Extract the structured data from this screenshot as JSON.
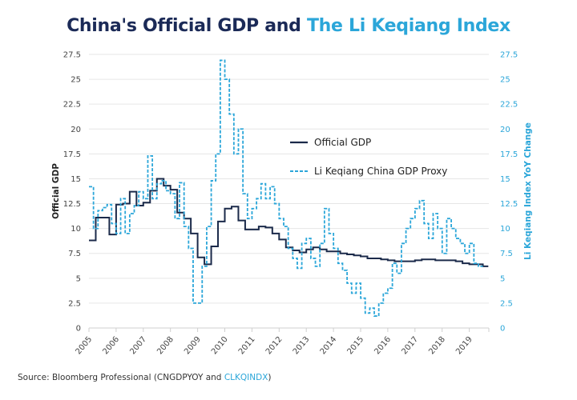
{
  "chart_data": {
    "type": "line",
    "title_part1": "China's Official GDP and",
    "title_part2": "The Li Keqiang Index",
    "ylabel": "Official GDP",
    "y2label": "Li Keqiang Index YoY Change",
    "ylim": [
      0,
      27.5
    ],
    "y2lim": [
      0,
      27.5
    ],
    "yticks": [
      "0",
      "2.5",
      "5",
      "7.5",
      "10",
      "12.5",
      "15",
      "17.5",
      "20",
      "22.5",
      "25",
      "27.5"
    ],
    "xlim": [
      2005,
      2019.7
    ],
    "xticks": [
      "2005",
      "2006",
      "2007",
      "2008",
      "2009",
      "2010",
      "2011",
      "2012",
      "2013",
      "2014",
      "2015",
      "2016",
      "2017",
      "2018",
      "2019"
    ],
    "grid": true,
    "legend_placement": "center-right",
    "series": [
      {
        "name": "Official GDP",
        "color": "#1b2a4a",
        "style": "solid-step",
        "x_start": 2005,
        "x_step_years": 0.25,
        "values": [
          8.8,
          11.1,
          11.1,
          9.4,
          12.4,
          12.5,
          13.7,
          12.3,
          12.6,
          13.8,
          15.0,
          14.3,
          13.9,
          11.6,
          11.0,
          9.5,
          7.1,
          6.4,
          8.2,
          10.7,
          12.0,
          12.2,
          10.8,
          9.9,
          9.9,
          10.2,
          10.1,
          9.5,
          8.9,
          8.1,
          7.8,
          7.6,
          7.9,
          8.1,
          7.9,
          7.7,
          7.7,
          7.5,
          7.4,
          7.3,
          7.2,
          7.0,
          7.0,
          6.9,
          6.8,
          6.7,
          6.7,
          6.7,
          6.8,
          6.9,
          6.9,
          6.8,
          6.8,
          6.8,
          6.7,
          6.5,
          6.4,
          6.4,
          6.2
        ]
      },
      {
        "name": "Li Keqiang China GDP Proxy",
        "color": "#2ba6d9",
        "style": "dashed-step",
        "x_start": 2005,
        "x_step_years": 0.1667,
        "values": [
          14.2,
          10.0,
          11.8,
          12.1,
          12.4,
          10.5,
          9.5,
          13.0,
          9.5,
          11.5,
          12.3,
          13.7,
          13.0,
          17.3,
          13.0,
          14.5,
          14.8,
          13.8,
          13.5,
          11.0,
          14.6,
          10.2,
          8.0,
          2.5,
          2.5,
          6.2,
          10.2,
          14.8,
          17.5,
          26.9,
          25.0,
          21.5,
          17.5,
          20.0,
          13.5,
          11.0,
          12.0,
          13.0,
          14.5,
          13.0,
          14.2,
          12.5,
          11.0,
          10.2,
          8.0,
          7.0,
          6.0,
          8.5,
          9.0,
          7.0,
          6.2,
          8.5,
          12.0,
          9.5,
          8.0,
          6.5,
          5.8,
          4.5,
          3.5,
          4.5,
          3.0,
          1.5,
          2.0,
          1.2,
          2.5,
          3.5,
          4.0,
          6.5,
          5.5,
          8.5,
          10.0,
          11.0,
          12.0,
          12.8,
          10.5,
          9.0,
          11.5,
          10.0,
          7.5,
          11.0,
          10.0,
          9.0,
          8.5,
          7.5,
          8.5,
          6.5,
          6.2
        ]
      }
    ],
    "source_prefix": "Source: Bloomberg Professional (CNGDPYOY and ",
    "source_highlight": "CLKQINDX",
    "source_suffix": ")"
  }
}
